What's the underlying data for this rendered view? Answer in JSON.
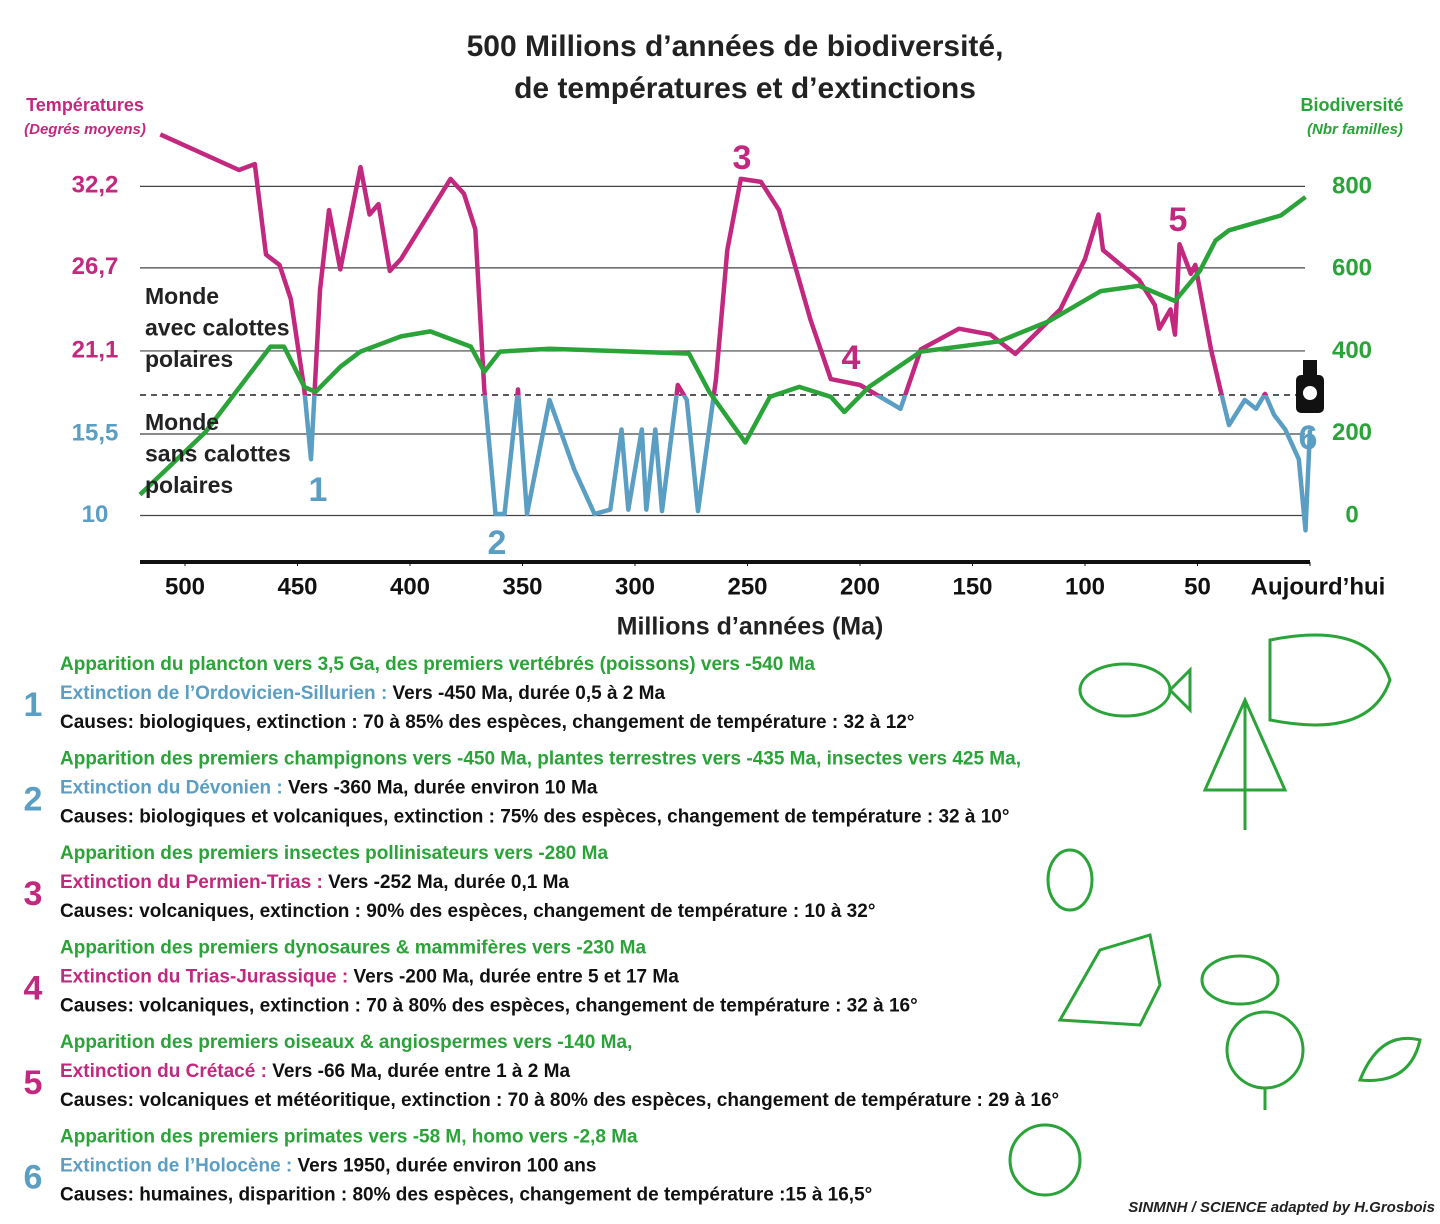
{
  "chart_data": {
    "type": "line",
    "title": [
      "500 Millions d’années de biodiversité,",
      "de températures et d’extinctions"
    ],
    "xlabel": "Millions d’années (Ma)",
    "yunit": "(Degrés moyens)",
    "y2unit": "(Nbr familles)",
    "xlim": [
      520,
      0
    ],
    "xticks": [
      500,
      450,
      400,
      350,
      300,
      250,
      200,
      150,
      100,
      50,
      {
        "value": 0,
        "label": "Aujourd’hui"
      }
    ],
    "ylim": [
      7,
      36
    ],
    "yticks": [
      {
        "value": 32.2,
        "label": "32,2"
      },
      {
        "value": 26.7,
        "label": "26,7"
      },
      {
        "value": 21.1,
        "label": "21,1"
      },
      {
        "value": 15.5,
        "label": "15,5"
      },
      10
    ],
    "y2lim": [
      -107,
      939
    ],
    "y2ticks": [
      800,
      600,
      400,
      200,
      0
    ],
    "grid": true,
    "series": [
      {
        "name": "Températures",
        "axis": "y",
        "colors": [
          "#c3287f",
          "#5b9ec4"
        ],
        "x": [
          511,
          476,
          469,
          464,
          458,
          453,
          447,
          444,
          440,
          436,
          431,
          422,
          418,
          414,
          409,
          404,
          382,
          376,
          371,
          367,
          362,
          358,
          352,
          348,
          338,
          327,
          318,
          311,
          306,
          303,
          297,
          295,
          291,
          288,
          281,
          277,
          272,
          264,
          259,
          253,
          244,
          236,
          222,
          213,
          200,
          182,
          173,
          156,
          142,
          131,
          111,
          100,
          94,
          92,
          76,
          69,
          67,
          62,
          60,
          58,
          53,
          51,
          44,
          40,
          36,
          29,
          24,
          20,
          16,
          11,
          5,
          2,
          0
        ],
        "values": [
          35.7,
          33.3,
          33.7,
          27.6,
          26.9,
          24.6,
          18.5,
          13.8,
          25.2,
          30.6,
          26.6,
          33.5,
          30.3,
          31.0,
          26.5,
          27.3,
          32.7,
          31.7,
          29.3,
          18.5,
          10.1,
          10.1,
          18.5,
          10.1,
          17.8,
          13.1,
          10.1,
          10.4,
          15.8,
          10.4,
          15.8,
          10.4,
          15.8,
          10.3,
          18.8,
          17.8,
          10.3,
          19.2,
          27.9,
          32.7,
          32.5,
          30.6,
          23.2,
          19.2,
          18.8,
          17.2,
          21.2,
          22.6,
          22.2,
          20.9,
          23.9,
          27.3,
          30.3,
          27.9,
          25.9,
          24.2,
          22.6,
          23.9,
          22.2,
          28.3,
          26.3,
          26.9,
          21.2,
          18.6,
          16.1,
          17.8,
          17.2,
          18.2,
          16.8,
          15.8,
          13.8,
          9.0,
          15.8
        ]
      },
      {
        "name": "Biodiversité",
        "axis": "y2",
        "color": "#2aa338",
        "x": [
          520,
          491,
          462,
          456,
          447,
          442,
          431,
          422,
          404,
          391,
          373,
          367,
          360,
          338,
          276,
          267,
          251,
          240,
          227,
          213,
          207,
          196,
          173,
          138,
          116,
          93,
          76,
          60,
          49,
          42,
          36,
          13,
          2
        ],
        "values": [
          52,
          204,
          412,
          412,
          314,
          302,
          363,
          400,
          437,
          449,
          412,
          351,
          400,
          407,
          395,
          302,
          179,
          290,
          314,
          290,
          253,
          314,
          400,
          425,
          474,
          547,
          560,
          523,
          596,
          670,
          695,
          731,
          776
        ]
      }
    ],
    "annotations": [
      {
        "text": "1",
        "color": "#5b9ec4"
      },
      {
        "text": "2",
        "color": "#5b9ec4"
      },
      {
        "text": "3",
        "color": "#c3287f"
      },
      {
        "text": "4",
        "color": "#c3287f"
      },
      {
        "text": "5",
        "color": "#c3287f"
      },
      {
        "text": "6",
        "color": "#5b9ec4"
      },
      {
        "text": [
          "Monde",
          "avec calottes",
          "polaires"
        ],
        "color": "#222"
      },
      {
        "text": [
          "Monde",
          "sans calottes",
          "polaires"
        ],
        "color": "#222"
      }
    ]
  },
  "events": [
    {
      "number": "1",
      "color": "#5b9ec4",
      "appearance": "Apparition du plancton vers 3,5 Ga, des premiers vertébrés (poissons) vers -540 Ma",
      "extinction": "Extinction de l’Ordovicien-Sillurien :",
      "details": " Vers -450 Ma, durée 0,5 à 2 Ma",
      "causes": "Causes: biologiques, extinction : 70 à 85% des espèces, changement de température : 32 à 12°"
    },
    {
      "number": "2",
      "color": "#5b9ec4",
      "appearance": "Apparition des premiers champignons vers -450 Ma, plantes terrestres vers -435 Ma, insectes vers 425 Ma,",
      "extinction": "Extinction du Dévonien :",
      "details": " Vers -360 Ma, durée environ 10 Ma",
      "causes": "Causes: biologiques et volcaniques, extinction : 75% des espèces, changement de température : 32 à 10°"
    },
    {
      "number": "3",
      "color": "#c3287f",
      "appearance": "Apparition des premiers insectes pollinisateurs vers -280 Ma",
      "extinction": "Extinction du Permien-Trias :",
      "details": " Vers -252 Ma, durée 0,1 Ma",
      "causes": "Causes: volcaniques, extinction : 90% des espèces, changement de température : 10 à 32°"
    },
    {
      "number": "4",
      "color": "#c3287f",
      "appearance": "Apparition des premiers dynosaures & mammifères vers -230 Ma",
      "extinction": "Extinction du Trias-Jurassique :",
      "details": " Vers -200 Ma, durée entre 5 et 17 Ma",
      "causes": "Causes: volcaniques, extinction : 70 à 80% des espèces, changement de température : 32 à 16°"
    },
    {
      "number": "5",
      "color": "#c3287f",
      "appearance": "Apparition des premiers oiseaux & angiospermes vers -140 Ma,",
      "extinction": "Extinction du Crétacé :",
      "details": " Vers -66 Ma, durée entre 1 à 2 Ma",
      "causes": "Causes: volcaniques et météoritique, extinction : 70 à 80% des espèces, changement de température : 29 à 16°"
    },
    {
      "number": "6",
      "color": "#5b9ec4",
      "appearance": "Apparition des premiers primates vers -58 M, homo vers -2,8 Ma",
      "extinction": "Extinction de l’Holocène :",
      "details": " Vers 1950, durée environ 100 ans",
      "causes": "Causes: humaines, disparition : 80% des espèces, changement de température :15 à 16,5°"
    }
  ],
  "source": "SINMNH / SCIENCE adapted by H.Grosbois"
}
